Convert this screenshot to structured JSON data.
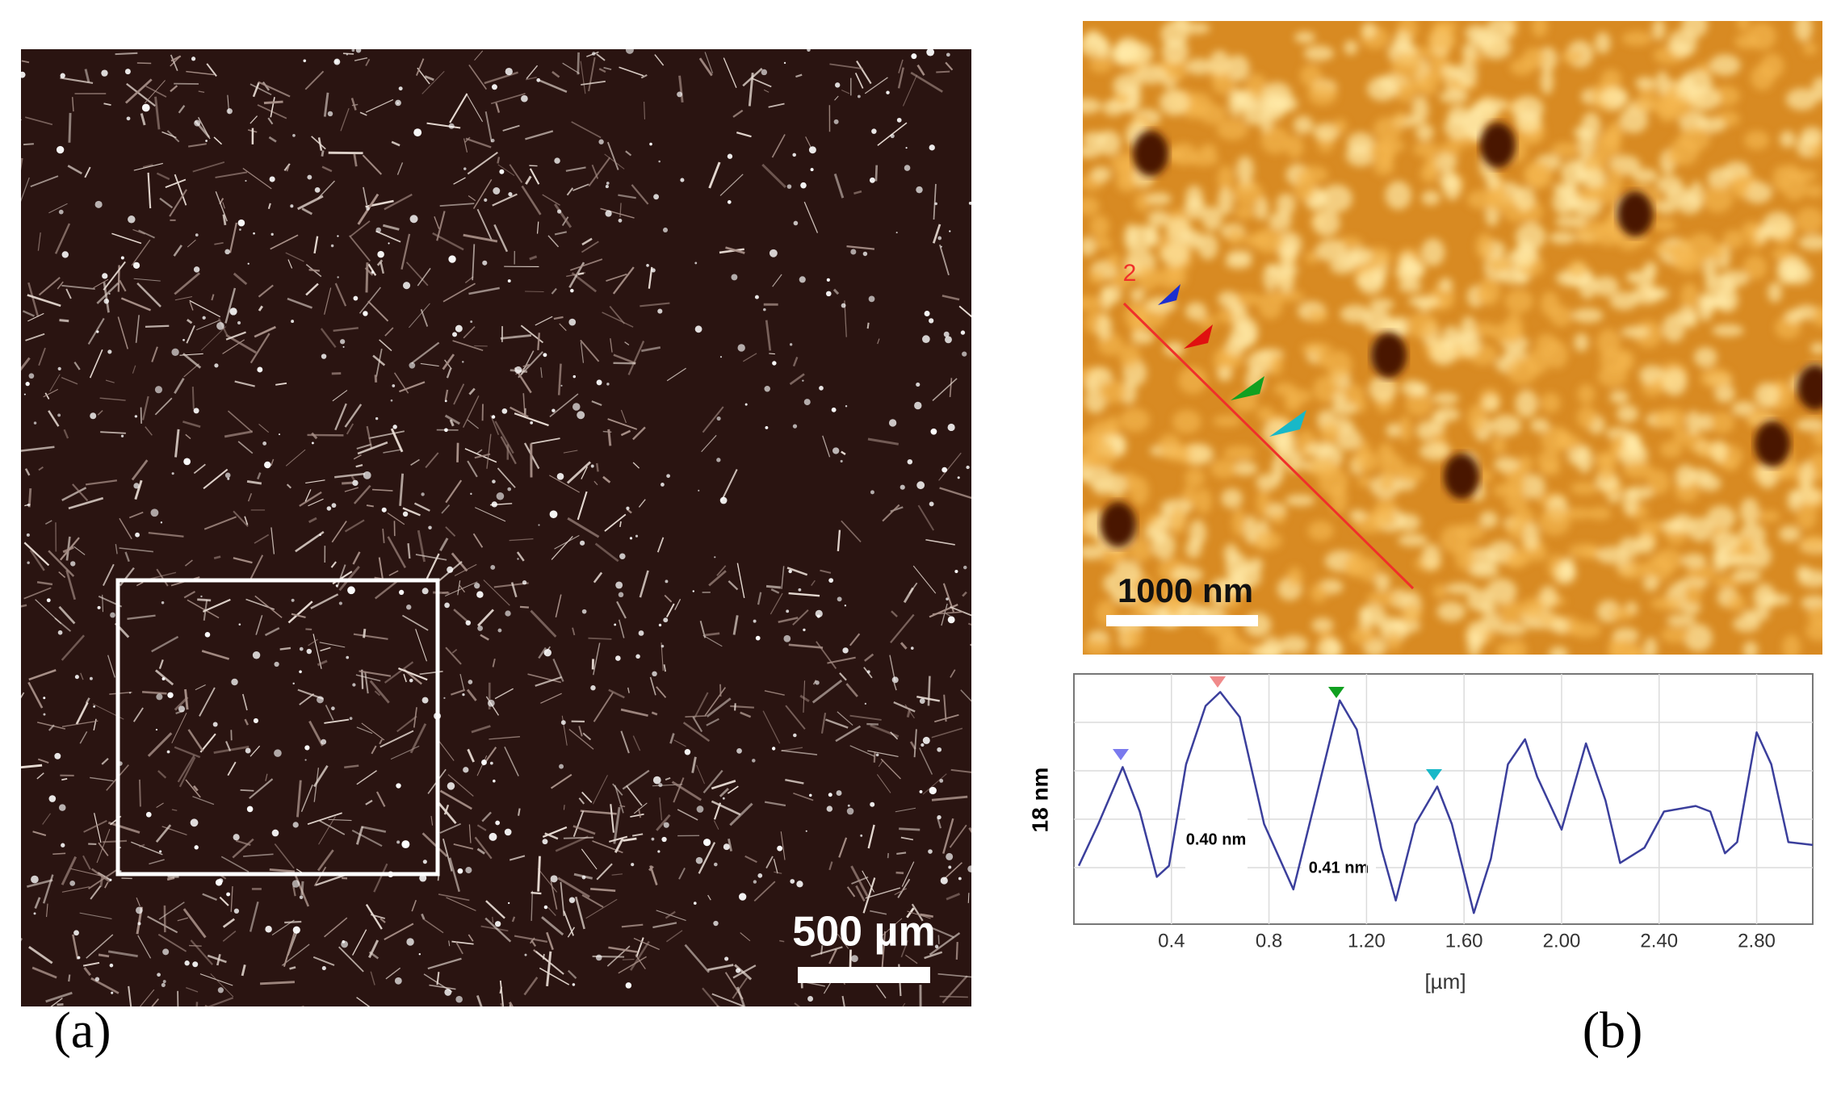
{
  "panel_a": {
    "label": "(a)",
    "scale_bar": "500 µm"
  },
  "panel_b": {
    "label": "(b)",
    "scale_bar": "1000 nm",
    "profile_id": "2"
  },
  "chart_data": {
    "type": "line",
    "x_label": "[µm]",
    "y_label": "18 nm",
    "annotations": [
      "0.40 nm",
      "0.41 nm"
    ],
    "x": [
      0.02,
      0.1,
      0.2,
      0.27,
      0.34,
      0.39,
      0.46,
      0.54,
      0.6,
      0.68,
      0.78,
      0.9,
      0.99,
      1.09,
      1.16,
      1.26,
      1.32,
      1.4,
      1.49,
      1.55,
      1.64,
      1.71,
      1.78,
      1.85,
      1.9,
      2.0,
      2.1,
      2.18,
      2.24,
      2.34,
      2.42,
      2.55,
      2.61,
      2.67,
      2.72,
      2.8,
      2.86,
      2.93,
      3.03
    ],
    "series": [
      {
        "color": "#3b3f9c",
        "values": [
          4.2,
          7.2,
          11.3,
          8.1,
          3.4,
          4.2,
          11.5,
          15.7,
          16.7,
          14.9,
          7.2,
          2.5,
          8.9,
          16.1,
          14.0,
          5.5,
          1.7,
          7.2,
          9.9,
          7.2,
          0.8,
          4.7,
          11.5,
          13.3,
          10.6,
          6.8,
          13.0,
          8.9,
          4.4,
          5.5,
          8.1,
          8.5,
          8.1,
          5.1,
          5.9,
          13.8,
          11.5,
          5.9,
          5.7
        ]
      }
    ],
    "xlim": [
      0,
      3.03
    ],
    "ylim": [
      0,
      18
    ],
    "xticks": [
      0.4,
      0.8,
      {
        "value": 1.2,
        "label": "1.20"
      },
      {
        "value": 1.6,
        "label": "1.60"
      },
      {
        "value": 2.0,
        "label": "2.00"
      },
      {
        "value": 2.4,
        "label": "2.40"
      },
      {
        "value": 2.8,
        "label": "2.80"
      }
    ],
    "grid": true
  }
}
